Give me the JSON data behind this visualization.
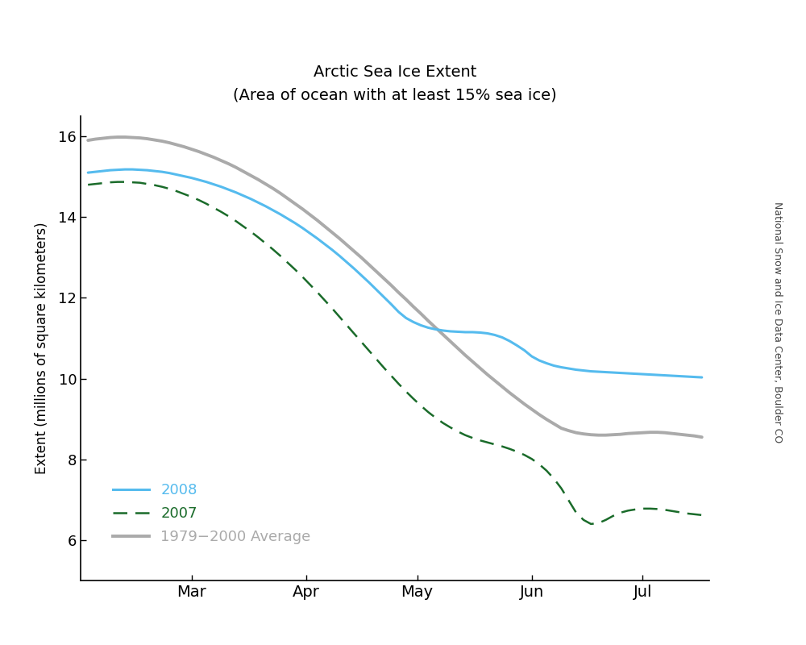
{
  "title_line1": "Arctic Sea Ice Extent",
  "title_line2": "(Area of ocean with at least 15% sea ice)",
  "ylabel": "Extent (millions of square kilometers)",
  "watermark": "National Snow and Ice Data Center, Boulder CO",
  "ylim": [
    5.0,
    16.5
  ],
  "yticks": [
    6,
    8,
    10,
    12,
    14,
    16
  ],
  "background_color": "#ffffff",
  "color_2008": "#55bbee",
  "color_2007": "#1a6b2a",
  "color_avg": "#aaaaaa",
  "legend_labels": [
    "2008",
    "2007",
    "1979−2000 Average"
  ],
  "avg_data_x": [
    0,
    2,
    4,
    6,
    8,
    10,
    12,
    14,
    16,
    18,
    20,
    22,
    24,
    26,
    28,
    30,
    32,
    34,
    36,
    38,
    40,
    42,
    44,
    46,
    48,
    50,
    52,
    54,
    56,
    58,
    60,
    62,
    64,
    66,
    68,
    70,
    72,
    74,
    76,
    78,
    80,
    82,
    84,
    86,
    88,
    90,
    92,
    94,
    96,
    98,
    100,
    102,
    104,
    106,
    108,
    110,
    112,
    114,
    116,
    118,
    120,
    122,
    124,
    126,
    128,
    130,
    132,
    134,
    136,
    138,
    140,
    142,
    144,
    146,
    148,
    150,
    152,
    154,
    156,
    158,
    160,
    162,
    164,
    166
  ],
  "avg_data_y": [
    15.9,
    15.93,
    15.95,
    15.97,
    15.98,
    15.98,
    15.97,
    15.96,
    15.94,
    15.91,
    15.88,
    15.84,
    15.79,
    15.74,
    15.68,
    15.62,
    15.55,
    15.48,
    15.4,
    15.32,
    15.23,
    15.13,
    15.03,
    14.93,
    14.82,
    14.71,
    14.59,
    14.46,
    14.33,
    14.2,
    14.06,
    13.92,
    13.77,
    13.62,
    13.47,
    13.31,
    13.15,
    12.99,
    12.82,
    12.65,
    12.48,
    12.31,
    12.13,
    11.96,
    11.78,
    11.61,
    11.43,
    11.26,
    11.09,
    10.92,
    10.75,
    10.58,
    10.42,
    10.26,
    10.1,
    9.95,
    9.8,
    9.65,
    9.51,
    9.37,
    9.24,
    9.11,
    8.99,
    8.88,
    8.77,
    8.71,
    8.66,
    8.63,
    8.61,
    8.6,
    8.6,
    8.61,
    8.62,
    8.64,
    8.65,
    8.66,
    8.67,
    8.67,
    8.66,
    8.64,
    8.62,
    8.6,
    8.58,
    8.55
  ],
  "data2008_x": [
    0,
    2,
    4,
    6,
    8,
    10,
    12,
    14,
    16,
    18,
    20,
    22,
    24,
    26,
    28,
    30,
    32,
    34,
    36,
    38,
    40,
    42,
    44,
    46,
    48,
    50,
    52,
    54,
    56,
    58,
    60,
    62,
    64,
    66,
    68,
    70,
    72,
    74,
    76,
    78,
    80,
    82,
    84,
    86,
    88,
    90,
    92,
    94,
    96,
    98,
    100,
    102,
    104,
    106,
    108,
    110,
    112,
    114,
    116,
    118,
    120,
    122,
    124,
    126,
    128,
    130,
    132,
    134,
    136,
    138,
    140,
    142,
    144,
    146,
    148,
    150,
    152,
    154,
    156,
    158,
    160,
    162,
    164,
    166
  ],
  "data2008_y": [
    15.1,
    15.12,
    15.14,
    15.16,
    15.17,
    15.18,
    15.18,
    15.17,
    15.16,
    15.14,
    15.12,
    15.09,
    15.05,
    15.01,
    14.97,
    14.92,
    14.87,
    14.81,
    14.75,
    14.68,
    14.61,
    14.53,
    14.45,
    14.36,
    14.27,
    14.17,
    14.07,
    13.96,
    13.85,
    13.73,
    13.6,
    13.47,
    13.33,
    13.19,
    13.04,
    12.88,
    12.72,
    12.55,
    12.38,
    12.2,
    12.02,
    11.84,
    11.65,
    11.5,
    11.4,
    11.32,
    11.26,
    11.22,
    11.19,
    11.17,
    11.16,
    11.15,
    11.15,
    11.14,
    11.12,
    11.08,
    11.02,
    10.93,
    10.82,
    10.7,
    10.55,
    10.45,
    10.38,
    10.32,
    10.28,
    10.25,
    10.22,
    10.2,
    10.18,
    10.17,
    10.16,
    10.15,
    10.14,
    10.13,
    10.12,
    10.11,
    10.1,
    10.09,
    10.08,
    10.07,
    10.06,
    10.05,
    10.04,
    10.03
  ],
  "data2007_x": [
    0,
    2,
    4,
    6,
    8,
    10,
    12,
    14,
    16,
    18,
    20,
    22,
    24,
    26,
    28,
    30,
    32,
    34,
    36,
    38,
    40,
    42,
    44,
    46,
    48,
    50,
    52,
    54,
    56,
    58,
    60,
    62,
    64,
    66,
    68,
    70,
    72,
    74,
    76,
    78,
    80,
    82,
    84,
    86,
    88,
    90,
    92,
    94,
    96,
    98,
    100,
    102,
    104,
    106,
    108,
    110,
    112,
    114,
    116,
    118,
    120,
    122,
    124,
    126,
    128,
    130,
    132,
    134,
    136,
    138,
    140,
    142,
    144,
    146,
    148,
    150,
    152,
    154,
    156,
    158,
    160,
    162,
    164,
    166
  ],
  "data2007_y": [
    14.8,
    14.82,
    14.84,
    14.86,
    14.87,
    14.87,
    14.86,
    14.85,
    14.82,
    14.79,
    14.75,
    14.7,
    14.64,
    14.57,
    14.5,
    14.42,
    14.33,
    14.23,
    14.13,
    14.02,
    13.9,
    13.77,
    13.64,
    13.5,
    13.35,
    13.2,
    13.04,
    12.87,
    12.7,
    12.52,
    12.33,
    12.14,
    11.94,
    11.74,
    11.53,
    11.32,
    11.11,
    10.9,
    10.69,
    10.48,
    10.27,
    10.07,
    9.87,
    9.68,
    9.5,
    9.33,
    9.17,
    9.03,
    8.9,
    8.79,
    8.69,
    8.6,
    8.53,
    8.47,
    8.42,
    8.37,
    8.32,
    8.26,
    8.19,
    8.11,
    8.01,
    7.88,
    7.72,
    7.52,
    7.28,
    6.98,
    6.68,
    6.5,
    6.4,
    6.42,
    6.5,
    6.6,
    6.68,
    6.73,
    6.76,
    6.78,
    6.78,
    6.77,
    6.75,
    6.72,
    6.69,
    6.66,
    6.64,
    6.62
  ]
}
